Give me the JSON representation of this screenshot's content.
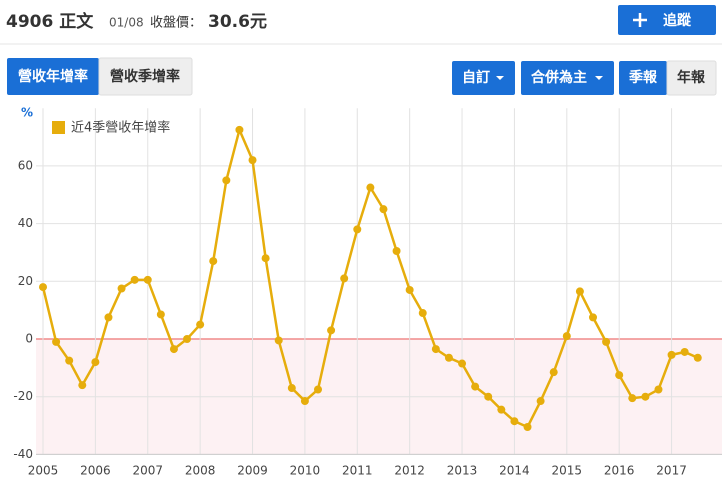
{
  "header": {
    "title": "4906 正文",
    "date": "01/08",
    "price_label": "收盤價：",
    "price": "30.6元",
    "follow_button": "追蹤"
  },
  "tabs": [
    "營收年增率",
    "營收季增率"
  ],
  "controls": [
    "自訂",
    "合併為主",
    "季報",
    "年報"
  ],
  "chart_data": {
    "type": "line",
    "y_label": "%",
    "grid": true,
    "x": [
      2005,
      2005.25,
      2005.5,
      2005.75,
      2006,
      2006.25,
      2006.5,
      2006.75,
      2007,
      2007.25,
      2007.5,
      2007.75,
      2008,
      2008.25,
      2008.5,
      2008.75,
      2009,
      2009.25,
      2009.5,
      2009.75,
      2010,
      2010.25,
      2010.5,
      2010.75,
      2011,
      2011.25,
      2011.5,
      2011.75,
      2012,
      2012.25,
      2012.5,
      2012.75,
      2013,
      2013.25,
      2013.5,
      2013.75,
      2014,
      2014.25,
      2014.5,
      2014.75,
      2015,
      2015.25,
      2015.5,
      2015.75,
      2016,
      2016.25,
      2016.5,
      2016.75,
      2017,
      2017.25,
      2017.5
    ],
    "series": [
      {
        "name": "近4季營收年增率",
        "color": "#e6ad0c",
        "values": [
          18,
          -1,
          -7.5,
          -16,
          -8,
          7.5,
          17.5,
          20.5,
          20.5,
          8.5,
          -3.5,
          0,
          5,
          27,
          55,
          72.5,
          62,
          28,
          -0.5,
          -17,
          -21.5,
          -17.5,
          3,
          21,
          38,
          52.5,
          45,
          30.5,
          17,
          9,
          -3.5,
          -6.5,
          -8.5,
          -16.5,
          -20,
          -24.5,
          -28.5,
          -30.5,
          -21.5,
          -11.5,
          1,
          16.5,
          7.5,
          -1,
          -12.5,
          -20.5,
          -20,
          -17.5,
          -5.5,
          -4.5,
          -6.5
        ]
      }
    ],
    "xlim": [
      2005,
      2017.6
    ],
    "xticks": [
      2005,
      2006,
      2007,
      2008,
      2009,
      2010,
      2011,
      2012,
      2013,
      2014,
      2015,
      2016,
      2017
    ],
    "ylim": [
      -40,
      80
    ],
    "yticks": [
      -40,
      -20,
      0,
      20,
      40,
      60
    ]
  }
}
